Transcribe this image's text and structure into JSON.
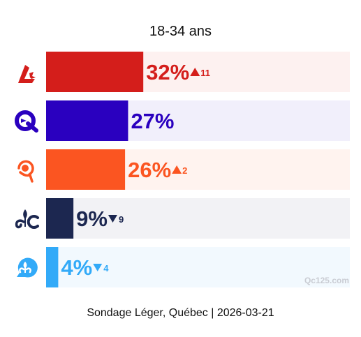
{
  "chart_data": {
    "type": "bar",
    "orientation": "horizontal",
    "title": "18-34 ans",
    "xlim": [
      0,
      100
    ],
    "grid": false,
    "legend": "none",
    "series": [
      {
        "party_icon": "plq-logo-icon",
        "value": 32,
        "label": "32%",
        "change": "up",
        "change_label": "11",
        "color": "#d41e1b",
        "track": "#fdf1f0"
      },
      {
        "party_icon": "caq-logo-icon",
        "value": 27,
        "label": "27%",
        "change": "",
        "change_label": "",
        "color": "#2a00bf",
        "track": "#f1effb"
      },
      {
        "party_icon": "qs-logo-icon",
        "value": 26,
        "label": "26%",
        "change": "up",
        "change_label": "2",
        "color": "#fb5521",
        "track": "#fff3ef"
      },
      {
        "party_icon": "pq-logo-icon",
        "value": 9,
        "label": "9%",
        "change": "down",
        "change_label": "9",
        "color": "#1c2750",
        "track": "#f2f2f5"
      },
      {
        "party_icon": "pcq-logo-icon",
        "value": 4,
        "label": "4%",
        "change": "down",
        "change_label": "4",
        "color": "#32aaf8",
        "track": "#f2f9fe"
      }
    ],
    "watermark": "Qc125.com",
    "source": "Sondage Léger, Québec | 2026-03-21"
  }
}
